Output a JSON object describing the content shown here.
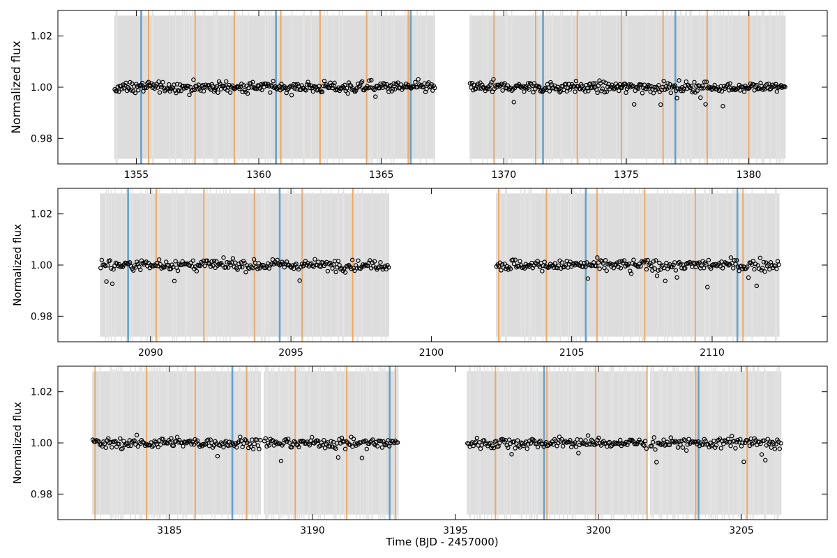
{
  "figure": {
    "xlabel": "Time (BJD - 2457000)"
  },
  "colors": {
    "background": "#ffffff",
    "scatter_band": "#d9d9d9",
    "scatter_band_dots": "#e3e3e3",
    "binned_points": "#000000",
    "blue_transit": "#5b9bc8",
    "orange_transit": "#f2a25a"
  },
  "chart_data": [
    {
      "type": "scatter",
      "panel": 1,
      "ylabel": "Normalized flux",
      "xlim": [
        1351.8,
        1383.2
      ],
      "ylim": [
        0.97,
        1.03
      ],
      "xticks": [
        1355,
        1360,
        1365,
        1370,
        1375,
        1380
      ],
      "yticks": [
        0.98,
        1.0,
        1.02
      ],
      "segments": [
        [
          1354.1,
          1367.2
        ],
        [
          1368.6,
          1381.5
        ]
      ],
      "binned_flux_mean": 1.0,
      "binned_flux_scatter": 0.0015,
      "raw_flux_band": [
        0.972,
        1.028
      ],
      "blue_lines": [
        1355.2,
        1360.7,
        1366.2,
        1371.6,
        1377.0
      ],
      "orange_lines": [
        1355.5,
        1357.4,
        1359.0,
        1360.9,
        1362.5,
        1364.4,
        1366.1,
        1369.6,
        1371.3,
        1373.0,
        1374.8,
        1376.5,
        1378.3,
        1380.0
      ]
    },
    {
      "type": "scatter",
      "panel": 2,
      "ylabel": "Normalized flux",
      "xlim": [
        2086.7,
        2114.1
      ],
      "ylim": [
        0.97,
        1.03
      ],
      "xticks": [
        2090,
        2095,
        2100,
        2105,
        2110
      ],
      "yticks": [
        0.98,
        1.0,
        1.02
      ],
      "segments": [
        [
          2088.2,
          2098.5
        ],
        [
          2102.3,
          2112.4
        ]
      ],
      "binned_flux_mean": 1.0,
      "binned_flux_scatter": 0.0015,
      "raw_flux_band": [
        0.972,
        1.028
      ],
      "blue_lines": [
        2089.2,
        2094.6,
        2105.5,
        2110.9
      ],
      "orange_lines": [
        2090.2,
        2091.9,
        2093.7,
        2095.4,
        2097.2,
        2102.4,
        2104.1,
        2105.9,
        2107.6,
        2109.4,
        2111.1
      ]
    },
    {
      "type": "scatter",
      "panel": 3,
      "ylabel": "Normalized flux",
      "xlim": [
        3181.1,
        3208.0
      ],
      "ylim": [
        0.97,
        1.03
      ],
      "xticks": [
        3185,
        3190,
        3195,
        3200,
        3205
      ],
      "yticks": [
        0.98,
        1.0,
        1.02
      ],
      "segments": [
        [
          3182.3,
          3188.2
        ],
        [
          3188.3,
          3193.0
        ],
        [
          3195.4,
          3201.7
        ],
        [
          3201.8,
          3206.4
        ]
      ],
      "binned_flux_mean": 1.0,
      "binned_flux_scatter": 0.0015,
      "raw_flux_band": [
        0.972,
        1.028
      ],
      "blue_lines": [
        3187.2,
        3192.7,
        3198.1,
        3203.5
      ],
      "orange_lines": [
        3182.4,
        3184.2,
        3185.9,
        3187.7,
        3189.4,
        3191.2,
        3192.9,
        3196.4,
        3198.2,
        3199.9,
        3201.7,
        3203.4,
        3205.2
      ]
    }
  ]
}
